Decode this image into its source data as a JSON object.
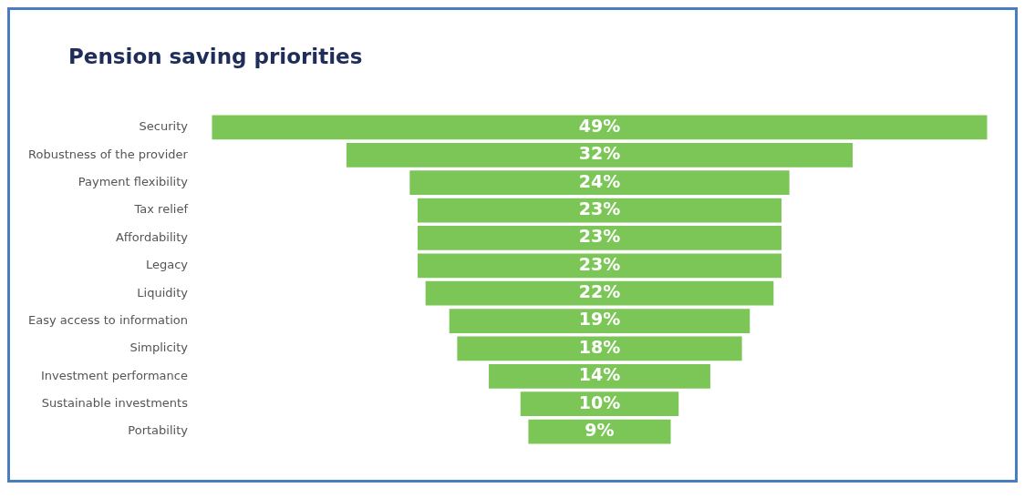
{
  "chart_data": {
    "type": "other",
    "title": "Pension saving priorities",
    "categories": [
      "Security",
      "Robustness of the provider",
      "Payment flexibility",
      "Tax relief",
      "Affordability",
      "Legacy",
      "Liquidity",
      "Easy access to information",
      "Simplicity",
      "Investment performance",
      "Sustainable investments",
      "Portability"
    ],
    "values": [
      49,
      32,
      24,
      23,
      23,
      23,
      22,
      19,
      18,
      14,
      10,
      9
    ],
    "value_labels": [
      "49%",
      "32%",
      "24%",
      "23%",
      "23%",
      "23%",
      "22%",
      "19%",
      "18%",
      "14%",
      "10%",
      "9%"
    ],
    "color": "#7cc657"
  }
}
